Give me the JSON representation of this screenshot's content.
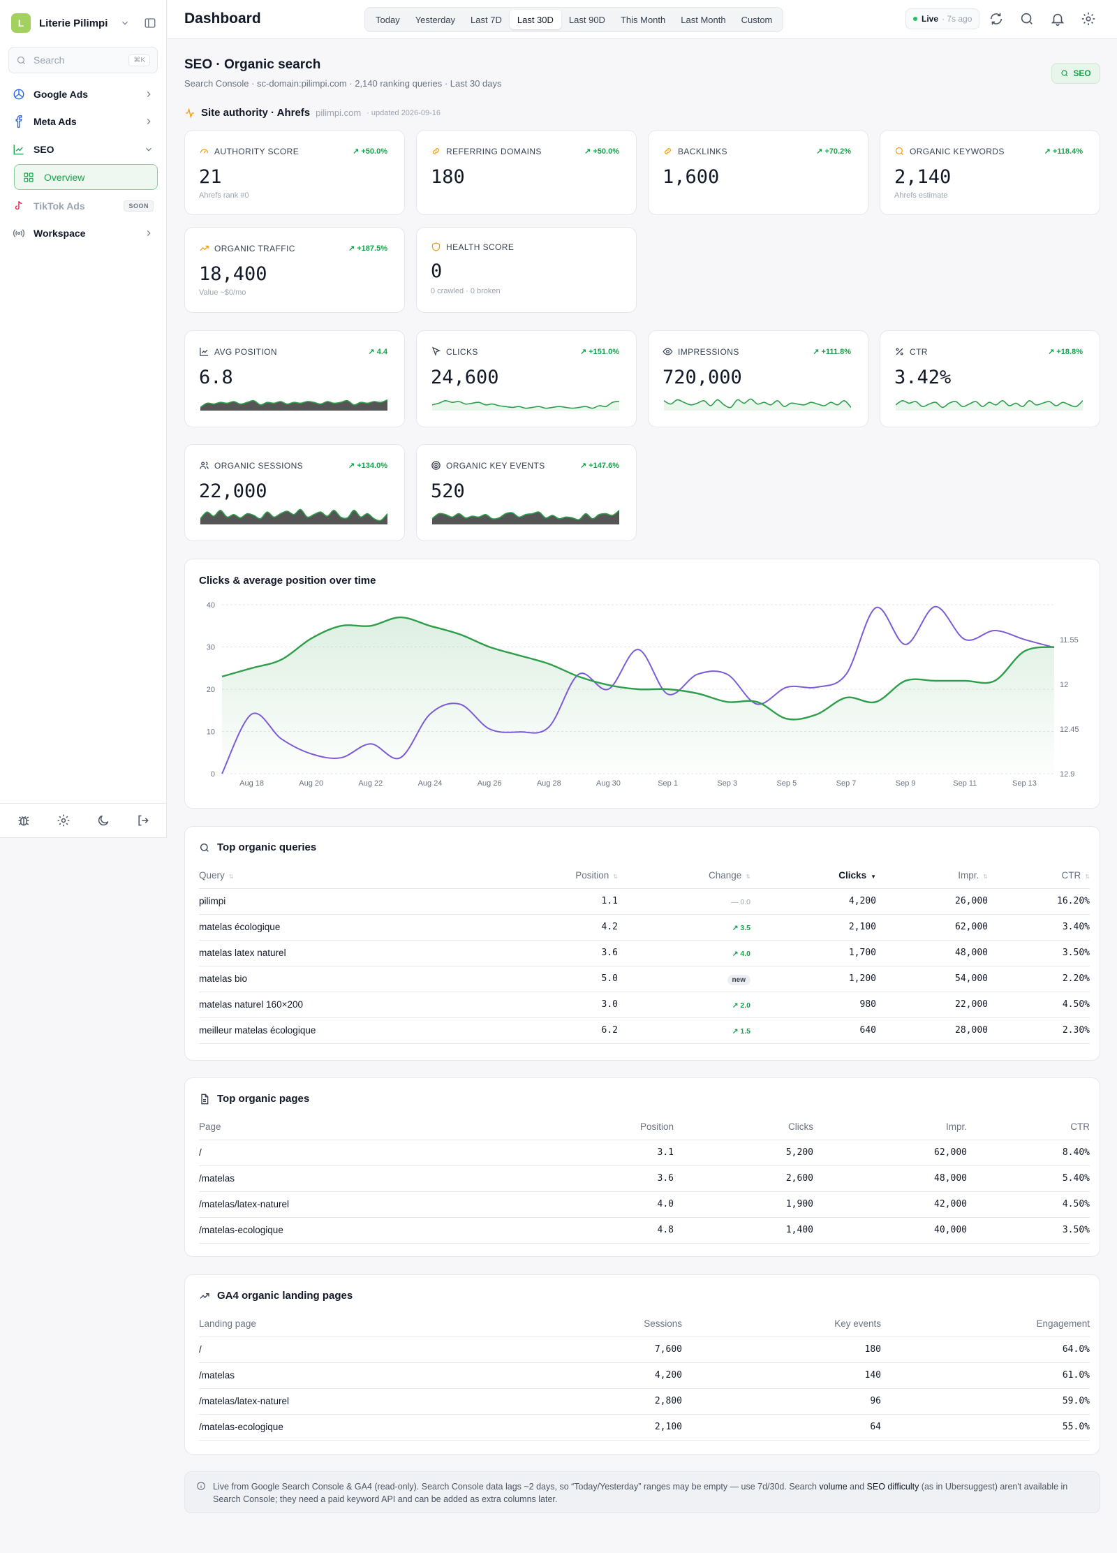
{
  "sidebar": {
    "brand_initial": "L",
    "brand_name": "Literie Pilimpi",
    "search_placeholder": "Search",
    "search_shortcut": "⌘K",
    "items": [
      {
        "label": "Google Ads",
        "icon": "google-ads-icon"
      },
      {
        "label": "Meta Ads",
        "icon": "meta-icon"
      },
      {
        "label": "SEO",
        "icon": "line-chart-icon"
      },
      {
        "label": "Overview",
        "icon": "grid-icon"
      },
      {
        "label": "TikTok Ads",
        "icon": "tiktok-icon",
        "badge": "SOON"
      },
      {
        "label": "Workspace",
        "icon": "broadcast-icon"
      }
    ]
  },
  "header": {
    "title": "Dashboard",
    "ranges": [
      "Today",
      "Yesterday",
      "Last 7D",
      "Last 30D",
      "Last 90D",
      "This Month",
      "Last Month",
      "Custom"
    ],
    "active_range": "Last 30D",
    "live_label": "Live",
    "live_ago": "· 7s ago"
  },
  "section": {
    "title": "SEO · Organic search",
    "subtitle": "Search Console · sc-domain:pilimpi.com · 2,140 ranking queries · Last 30 days",
    "badge": "SEO"
  },
  "authority": {
    "title": "Site authority · Ahrefs",
    "domain": "pilimpi.com",
    "updated": "· updated 2026-09-16"
  },
  "kpis_authority": [
    {
      "label": "AUTHORITY SCORE",
      "delta": "↗ +50.0%",
      "value": "21",
      "note": "Ahrefs rank #0",
      "icon": "gauge-icon"
    },
    {
      "label": "REFERRING DOMAINS",
      "delta": "↗ +50.0%",
      "value": "180",
      "note": "",
      "icon": "link-icon"
    },
    {
      "label": "BACKLINKS",
      "delta": "↗ +70.2%",
      "value": "1,600",
      "note": "",
      "icon": "link-icon"
    },
    {
      "label": "ORGANIC KEYWORDS",
      "delta": "↗ +118.4%",
      "value": "2,140",
      "note": "Ahrefs estimate",
      "icon": "search-icon"
    },
    {
      "label": "ORGANIC TRAFFIC",
      "delta": "↗ +187.5%",
      "value": "18,400",
      "note": "Value ~$0/mo",
      "icon": "trend-icon"
    },
    {
      "label": "HEALTH SCORE",
      "delta": "",
      "value": "0",
      "note": "0 crawled · 0 broken",
      "icon": "shield-icon"
    }
  ],
  "kpis_search": [
    {
      "label": "AVG POSITION",
      "delta": "↗ 4.4",
      "value": "6.8",
      "icon": "chart-icon"
    },
    {
      "label": "CLICKS",
      "delta": "↗ +151.0%",
      "value": "24,600",
      "icon": "cursor-icon"
    },
    {
      "label": "IMPRESSIONS",
      "delta": "↗ +111.8%",
      "value": "720,000",
      "icon": "eye-icon"
    },
    {
      "label": "CTR",
      "delta": "↗ +18.8%",
      "value": "3.42%",
      "icon": "percent-icon"
    },
    {
      "label": "ORGANIC SESSIONS",
      "delta": "↗ +134.0%",
      "value": "22,000",
      "icon": "users-icon"
    },
    {
      "label": "ORGANIC KEY EVENTS",
      "delta": "↗ +147.6%",
      "value": "520",
      "icon": "target-icon"
    }
  ],
  "colors": {
    "accent": "#16a34a",
    "clicks_line": "#2e9e4a",
    "position_line": "#7c5cd6",
    "spark_fill": "#555555"
  },
  "chart_data": {
    "type": "line",
    "title": "Clicks & average position over time",
    "x": [
      "Aug 17",
      "Aug 18",
      "Aug 19",
      "Aug 20",
      "Aug 21",
      "Aug 22",
      "Aug 23",
      "Aug 24",
      "Aug 25",
      "Aug 26",
      "Aug 27",
      "Aug 28",
      "Aug 29",
      "Aug 30",
      "Aug 31",
      "Sep 1",
      "Sep 2",
      "Sep 3",
      "Sep 4",
      "Sep 5",
      "Sep 6",
      "Sep 7",
      "Sep 8",
      "Sep 9",
      "Sep 10",
      "Sep 11",
      "Sep 12",
      "Sep 13",
      "Sep 14"
    ],
    "x_tick_labels": [
      "Aug 18",
      "Aug 20",
      "Aug 22",
      "Aug 24",
      "Aug 26",
      "Aug 28",
      "Aug 30",
      "Sep 1",
      "Sep 3",
      "Sep 5",
      "Sep 7",
      "Sep 9",
      "Sep 11",
      "Sep 13"
    ],
    "series": [
      {
        "name": "Clicks",
        "axis": "left",
        "values": [
          23,
          25,
          27,
          32,
          35,
          35,
          37,
          35,
          33,
          30,
          28,
          26,
          23,
          21,
          20,
          20,
          19,
          17,
          17,
          13,
          14,
          18,
          17,
          22,
          22,
          22,
          22,
          29,
          30
        ]
      },
      {
        "name": "Avg position",
        "axis": "right",
        "values": [
          12.9,
          12.3,
          12.55,
          12.7,
          12.74,
          12.6,
          12.74,
          12.3,
          12.2,
          12.45,
          12.48,
          12.43,
          11.9,
          12.05,
          11.65,
          12.1,
          11.9,
          11.9,
          12.2,
          12.03,
          12.03,
          11.9,
          11.23,
          11.6,
          11.22,
          11.55,
          11.46,
          11.55,
          11.63
        ]
      }
    ],
    "ylim_left": [
      0,
      40
    ],
    "yticks_left": [
      0,
      10,
      20,
      30,
      40
    ],
    "ylim_right": [
      12.9,
      11.2
    ],
    "yticks_right": [
      "11.55",
      "12",
      "12.45",
      "12.9"
    ],
    "grid": true
  },
  "sparklines": {
    "avg_position": [
      0.15,
      0.4,
      0.35,
      0.45,
      0.4,
      0.5,
      0.35,
      0.45,
      0.55,
      0.3,
      0.45,
      0.4,
      0.5,
      0.35,
      0.45,
      0.4,
      0.5,
      0.45,
      0.35,
      0.5,
      0.4,
      0.45,
      0.55,
      0.3,
      0.45,
      0.4,
      0.5,
      0.45,
      0.6
    ],
    "clicks": [
      0.3,
      0.4,
      0.55,
      0.45,
      0.5,
      0.35,
      0.4,
      0.45,
      0.3,
      0.35,
      0.25,
      0.2,
      0.15,
      0.2,
      0.1,
      0.15,
      0.2,
      0.1,
      0.15,
      0.2,
      0.15,
      0.1,
      0.15,
      0.2,
      0.1,
      0.25,
      0.2,
      0.45,
      0.5
    ],
    "impressions": [
      0.55,
      0.35,
      0.6,
      0.45,
      0.3,
      0.4,
      0.55,
      0.25,
      0.6,
      0.3,
      0.15,
      0.6,
      0.4,
      0.65,
      0.35,
      0.45,
      0.3,
      0.55,
      0.2,
      0.4,
      0.35,
      0.3,
      0.45,
      0.35,
      0.25,
      0.45,
      0.3,
      0.55,
      0.15
    ],
    "ctr": [
      0.3,
      0.55,
      0.4,
      0.5,
      0.2,
      0.35,
      0.45,
      0.15,
      0.4,
      0.5,
      0.2,
      0.35,
      0.5,
      0.2,
      0.45,
      0.3,
      0.55,
      0.25,
      0.4,
      0.2,
      0.55,
      0.3,
      0.4,
      0.5,
      0.25,
      0.45,
      0.3,
      0.2,
      0.55
    ],
    "sessions": [
      0.3,
      0.7,
      0.45,
      0.8,
      0.4,
      0.55,
      0.35,
      0.6,
      0.5,
      0.3,
      0.7,
      0.4,
      0.6,
      0.75,
      0.55,
      0.85,
      0.4,
      0.55,
      0.7,
      0.45,
      0.8,
      0.4,
      0.35,
      0.8,
      0.4,
      0.6,
      0.3,
      0.2,
      0.6
    ],
    "key_events": [
      0.3,
      0.6,
      0.55,
      0.4,
      0.6,
      0.35,
      0.45,
      0.4,
      0.55,
      0.3,
      0.35,
      0.6,
      0.65,
      0.4,
      0.55,
      0.6,
      0.7,
      0.35,
      0.5,
      0.3,
      0.4,
      0.35,
      0.25,
      0.6,
      0.3,
      0.55,
      0.6,
      0.5,
      0.8
    ]
  },
  "queries": {
    "title": "Top organic queries",
    "columns": [
      "Query",
      "Position",
      "Change",
      "Clicks",
      "Impr.",
      "CTR"
    ],
    "rows": [
      {
        "query": "pilimpi",
        "position": "1.1",
        "change": "— 0.0",
        "change_kind": "flat",
        "clicks": "4,200",
        "impr": "26,000",
        "ctr": "16.20%"
      },
      {
        "query": "matelas écologique",
        "position": "4.2",
        "change": "↗ 3.5",
        "change_kind": "up",
        "clicks": "2,100",
        "impr": "62,000",
        "ctr": "3.40%"
      },
      {
        "query": "matelas latex naturel",
        "position": "3.6",
        "change": "↗ 4.0",
        "change_kind": "up",
        "clicks": "1,700",
        "impr": "48,000",
        "ctr": "3.50%"
      },
      {
        "query": "matelas bio",
        "position": "5.0",
        "change": "new",
        "change_kind": "new",
        "clicks": "1,200",
        "impr": "54,000",
        "ctr": "2.20%"
      },
      {
        "query": "matelas naturel 160×200",
        "position": "3.0",
        "change": "↗ 2.0",
        "change_kind": "up",
        "clicks": "980",
        "impr": "22,000",
        "ctr": "4.50%"
      },
      {
        "query": "meilleur matelas écologique",
        "position": "6.2",
        "change": "↗ 1.5",
        "change_kind": "up",
        "clicks": "640",
        "impr": "28,000",
        "ctr": "2.30%"
      }
    ]
  },
  "pages": {
    "title": "Top organic pages",
    "columns": [
      "Page",
      "Position",
      "Clicks",
      "Impr.",
      "CTR"
    ],
    "rows": [
      {
        "page": "/",
        "position": "3.1",
        "clicks": "5,200",
        "impr": "62,000",
        "ctr": "8.40%"
      },
      {
        "page": "/matelas",
        "position": "3.6",
        "clicks": "2,600",
        "impr": "48,000",
        "ctr": "5.40%"
      },
      {
        "page": "/matelas/latex-naturel",
        "position": "4.0",
        "clicks": "1,900",
        "impr": "42,000",
        "ctr": "4.50%"
      },
      {
        "page": "/matelas-ecologique",
        "position": "4.8",
        "clicks": "1,400",
        "impr": "40,000",
        "ctr": "3.50%"
      }
    ]
  },
  "landing": {
    "title": "GA4 organic landing pages",
    "columns": [
      "Landing page",
      "Sessions",
      "Key events",
      "Engagement"
    ],
    "rows": [
      {
        "page": "/",
        "sessions": "7,600",
        "events": "180",
        "engagement": "64.0%"
      },
      {
        "page": "/matelas",
        "sessions": "4,200",
        "events": "140",
        "engagement": "61.0%"
      },
      {
        "page": "/matelas/latex-naturel",
        "sessions": "2,800",
        "events": "96",
        "engagement": "59.0%"
      },
      {
        "page": "/matelas-ecologique",
        "sessions": "2,100",
        "events": "64",
        "engagement": "55.0%"
      }
    ]
  },
  "footnote": {
    "part1": "Live from Google Search Console & GA4 (read-only). Search Console data lags ~2 days, so “Today/Yesterday” ranges may be empty — use 7d/30d. Search ",
    "b1": "volume",
    "part2": " and ",
    "b2": "SEO difficulty",
    "part3": " (as in Ubersuggest) aren't available in Search Console; they need a paid keyword API and can be added as extra columns later."
  }
}
